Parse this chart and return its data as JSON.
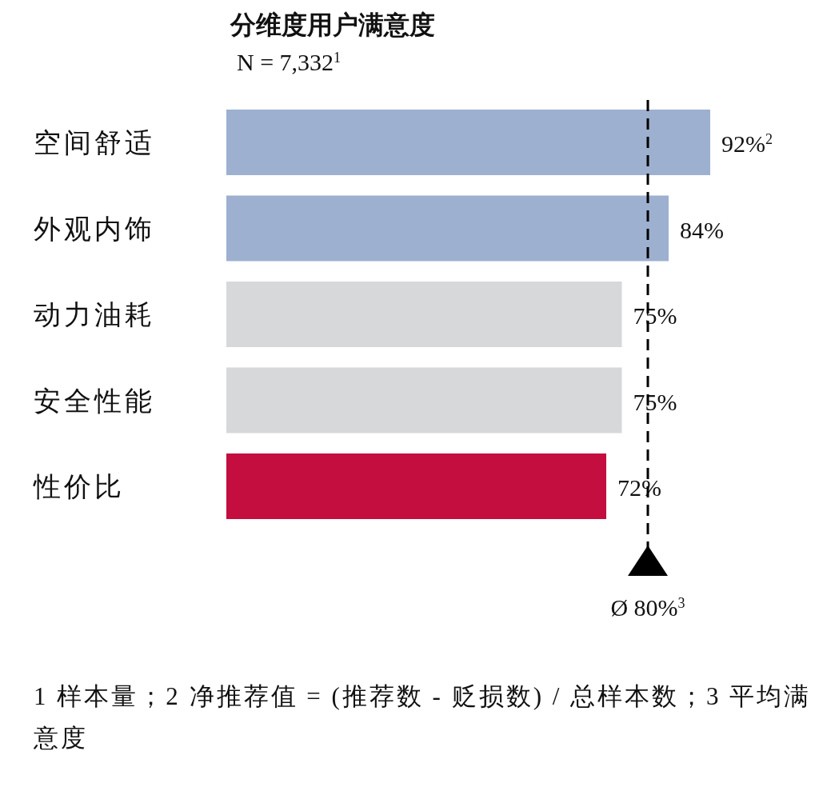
{
  "chart_data": {
    "type": "bar",
    "orientation": "horizontal",
    "title": "分维度用户满意度",
    "subtitle": "N = 7,332$^{1}$",
    "categories": [
      "空间舒适",
      "外观内饰",
      "动力油耗",
      "安全性能",
      "性价比"
    ],
    "values": [
      92,
      84,
      75,
      75,
      72
    ],
    "colors": [
      "#9db0cf",
      "#9db0cf",
      "#d7d8da",
      "#d7d8da",
      "#c30e3f"
    ],
    "value_labels": [
      "92%$^{2}$",
      "84%",
      "75%",
      "75%",
      "72%"
    ],
    "ref_lines": [
      {
        "axis": "x",
        "value": 80,
        "label": "Ø 80%$^{3}$",
        "line_style": "dashed",
        "color": "#000000"
      }
    ],
    "annotations": [
      "1 样本量；2 净推荐值 = (推荐数 - 贬损数) / 总样本数；3 平均满意度"
    ],
    "grid": false
  }
}
